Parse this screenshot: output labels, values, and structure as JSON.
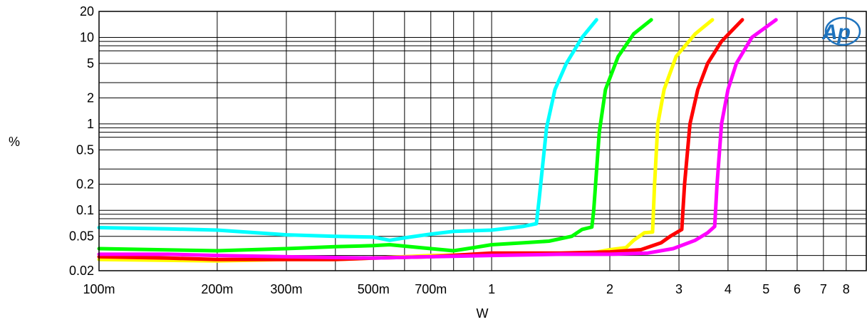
{
  "chart_data": {
    "type": "line",
    "xlabel": "W",
    "ylabel": "%",
    "x_scale": "log",
    "y_scale": "log",
    "xlim": [
      0.1,
      9
    ],
    "ylim": [
      0.02,
      20
    ],
    "x_ticks": [
      {
        "value": 0.1,
        "label": "100m"
      },
      {
        "value": 0.2,
        "label": "200m"
      },
      {
        "value": 0.3,
        "label": "300m"
      },
      {
        "value": 0.5,
        "label": "500m"
      },
      {
        "value": 0.7,
        "label": "700m"
      },
      {
        "value": 1,
        "label": "1"
      },
      {
        "value": 2,
        "label": "2"
      },
      {
        "value": 3,
        "label": "3"
      },
      {
        "value": 4,
        "label": "4"
      },
      {
        "value": 5,
        "label": "5"
      },
      {
        "value": 6,
        "label": "6"
      },
      {
        "value": 7,
        "label": "7"
      },
      {
        "value": 8,
        "label": "8"
      }
    ],
    "x_grid": [
      0.1,
      0.2,
      0.3,
      0.4,
      0.5,
      0.6,
      0.7,
      0.8,
      0.9,
      1,
      2,
      3,
      4,
      5,
      6,
      7,
      8,
      9
    ],
    "y_ticks": [
      {
        "value": 20,
        "label": "20"
      },
      {
        "value": 10,
        "label": "10"
      },
      {
        "value": 5,
        "label": "5"
      },
      {
        "value": 2,
        "label": "2"
      },
      {
        "value": 1,
        "label": "1"
      },
      {
        "value": 0.5,
        "label": "0.5"
      },
      {
        "value": 0.2,
        "label": "0.2"
      },
      {
        "value": 0.1,
        "label": "0.1"
      },
      {
        "value": 0.05,
        "label": "0.05"
      },
      {
        "value": 0.02,
        "label": "0.02"
      }
    ],
    "y_grid": [
      20,
      10,
      9,
      8,
      7,
      5,
      3,
      2,
      1,
      0.9,
      0.8,
      0.7,
      0.5,
      0.3,
      0.2,
      0.1,
      0.09,
      0.08,
      0.07,
      0.05,
      0.03
    ],
    "grid": true,
    "series": [
      {
        "color": "#00ffff",
        "points": [
          [
            0.1,
            0.063
          ],
          [
            0.15,
            0.061
          ],
          [
            0.2,
            0.059
          ],
          [
            0.3,
            0.052
          ],
          [
            0.4,
            0.05
          ],
          [
            0.5,
            0.049
          ],
          [
            0.55,
            0.045
          ],
          [
            0.6,
            0.048
          ],
          [
            0.7,
            0.053
          ],
          [
            0.8,
            0.057
          ],
          [
            1.0,
            0.059
          ],
          [
            1.2,
            0.065
          ],
          [
            1.3,
            0.07
          ],
          [
            1.32,
            0.13
          ],
          [
            1.38,
            0.9
          ],
          [
            1.45,
            2.5
          ],
          [
            1.55,
            5
          ],
          [
            1.7,
            10
          ],
          [
            1.85,
            16
          ]
        ]
      },
      {
        "color": "#00ff00",
        "points": [
          [
            0.1,
            0.036
          ],
          [
            0.2,
            0.034
          ],
          [
            0.3,
            0.036
          ],
          [
            0.4,
            0.038
          ],
          [
            0.5,
            0.039
          ],
          [
            0.55,
            0.04
          ],
          [
            0.7,
            0.036
          ],
          [
            0.8,
            0.034
          ],
          [
            0.9,
            0.037
          ],
          [
            1.0,
            0.04
          ],
          [
            1.2,
            0.042
          ],
          [
            1.4,
            0.044
          ],
          [
            1.6,
            0.05
          ],
          [
            1.7,
            0.06
          ],
          [
            1.8,
            0.064
          ],
          [
            1.82,
            0.1
          ],
          [
            1.88,
            0.8
          ],
          [
            1.95,
            2.5
          ],
          [
            2.1,
            6
          ],
          [
            2.3,
            11
          ],
          [
            2.55,
            16
          ]
        ]
      },
      {
        "color": "#ffff00",
        "points": [
          [
            0.1,
            0.027
          ],
          [
            0.2,
            0.026
          ],
          [
            0.3,
            0.027
          ],
          [
            0.4,
            0.027
          ],
          [
            0.5,
            0.028
          ],
          [
            0.7,
            0.03
          ],
          [
            1.0,
            0.031
          ],
          [
            1.4,
            0.031
          ],
          [
            1.8,
            0.032
          ],
          [
            2.0,
            0.035
          ],
          [
            2.2,
            0.037
          ],
          [
            2.3,
            0.045
          ],
          [
            2.45,
            0.055
          ],
          [
            2.57,
            0.056
          ],
          [
            2.6,
            0.2
          ],
          [
            2.65,
            1.0
          ],
          [
            2.75,
            2.5
          ],
          [
            2.95,
            6
          ],
          [
            3.3,
            11
          ],
          [
            3.65,
            16
          ]
        ]
      },
      {
        "color": "#ff0000",
        "points": [
          [
            0.1,
            0.029
          ],
          [
            0.15,
            0.028
          ],
          [
            0.2,
            0.027
          ],
          [
            0.3,
            0.027
          ],
          [
            0.4,
            0.027
          ],
          [
            0.5,
            0.028
          ],
          [
            0.7,
            0.029
          ],
          [
            1.0,
            0.032
          ],
          [
            1.5,
            0.032
          ],
          [
            2.0,
            0.033
          ],
          [
            2.4,
            0.035
          ],
          [
            2.7,
            0.042
          ],
          [
            2.85,
            0.05
          ],
          [
            3.05,
            0.06
          ],
          [
            3.1,
            0.2
          ],
          [
            3.2,
            1.0
          ],
          [
            3.35,
            2.5
          ],
          [
            3.55,
            5
          ],
          [
            3.85,
            9
          ],
          [
            4.35,
            16
          ]
        ]
      },
      {
        "color": "#ff00ff",
        "points": [
          [
            0.1,
            0.031
          ],
          [
            0.15,
            0.031
          ],
          [
            0.2,
            0.03
          ],
          [
            0.3,
            0.029
          ],
          [
            0.5,
            0.028
          ],
          [
            0.7,
            0.029
          ],
          [
            1.0,
            0.03
          ],
          [
            1.5,
            0.031
          ],
          [
            2.0,
            0.031
          ],
          [
            2.5,
            0.032
          ],
          [
            2.9,
            0.036
          ],
          [
            3.3,
            0.045
          ],
          [
            3.55,
            0.055
          ],
          [
            3.7,
            0.065
          ],
          [
            3.75,
            0.2
          ],
          [
            3.85,
            1.0
          ],
          [
            4.0,
            2.5
          ],
          [
            4.2,
            5
          ],
          [
            4.6,
            10
          ],
          [
            5.3,
            16
          ]
        ]
      }
    ]
  },
  "logo": {
    "text": "Ap"
  }
}
